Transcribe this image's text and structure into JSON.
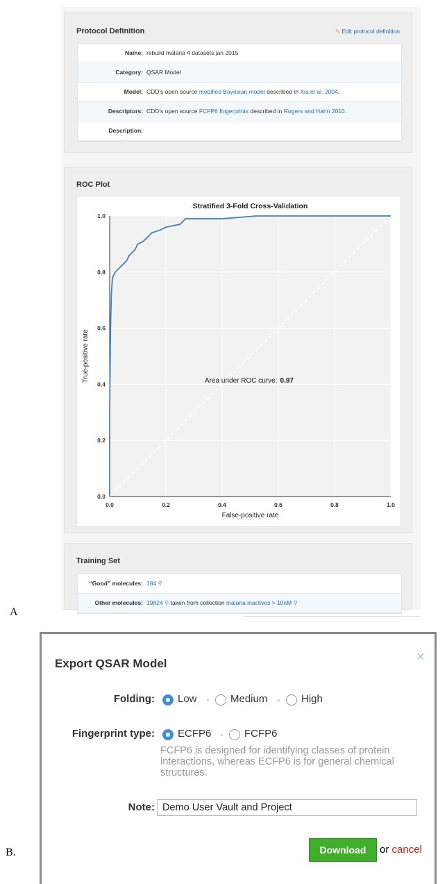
{
  "panel_a": {
    "label": "A",
    "protocol": {
      "title": "Protocol Definition",
      "edit_link": "Edit protocol definition",
      "rows": [
        {
          "label": "Name:",
          "value": [
            "rebuild malaria 4 datasets jan 2015"
          ]
        },
        {
          "label": "Category:",
          "value": [
            "QSAR Model"
          ]
        },
        {
          "label": "Model:",
          "value": [
            "CDD's open source",
            "modified Bayesian model",
            "described in",
            "Xia et al. 2004",
            "."
          ]
        },
        {
          "label": "Descriptors:",
          "value": [
            "CDD's open source",
            "FCFP6 fingerprints",
            "described in",
            "Rogers and Hahn 2010",
            "."
          ]
        },
        {
          "label": "Description:"
        }
      ]
    },
    "roc": {
      "title": "ROC Plot"
    },
    "training_set": {
      "title": "Training Set",
      "rows": [
        {
          "label": "“Good” molecules:",
          "count": 184
        },
        {
          "label": "Other molecules:",
          "count": 19824,
          "source": "taken from collection",
          "collection": "malaria inactives > 10nM"
        }
      ]
    }
  },
  "chart_data": {
    "type": "line",
    "title": "Stratified 3-Fold Cross-Validation",
    "x_label": "False-positive rate",
    "y_label": "True-positive rate",
    "annotation": "Area under ROC curve:",
    "auc": 0.97,
    "x": [
      0,
      0,
      0.003,
      0.006,
      0.01,
      0.02,
      0.03,
      0.04,
      0.05,
      0.06,
      0.07,
      0.08,
      0.09,
      0.1,
      0.12,
      0.13,
      0.15,
      0.18,
      0.2,
      0.25,
      0.27,
      0.3,
      0.4,
      0.52,
      1.0
    ],
    "series": [
      {
        "color": "#4a7fb5",
        "values": [
          0,
          0.3,
          0.6,
          0.72,
          0.78,
          0.8,
          0.81,
          0.82,
          0.83,
          0.84,
          0.86,
          0.87,
          0.88,
          0.9,
          0.91,
          0.92,
          0.94,
          0.95,
          0.96,
          0.97,
          0.99,
          0.99,
          0.99,
          1.0,
          1.0
        ]
      }
    ],
    "xlim": [
      0,
      1
    ],
    "ylim": [
      0,
      1
    ],
    "xticks": [
      {
        "value": 0,
        "label": "0.0"
      },
      0.2,
      0.4,
      0.6,
      0.8,
      {
        "value": 1,
        "label": "1.0"
      }
    ],
    "yticks": [
      {
        "value": 0,
        "label": "0.0"
      },
      0.2,
      0.4,
      0.6,
      0.8,
      {
        "value": 1,
        "label": "1.0"
      }
    ],
    "grid": true
  },
  "panel_b": {
    "label": "B.",
    "dialog": {
      "title": "Export QSAR Model",
      "close": "×",
      "folding": {
        "label": "Folding:",
        "options": [
          "Low",
          "Medium",
          "High"
        ],
        "selected": 0
      },
      "fingerprint": {
        "label": "Fingerprint type:",
        "options": [
          "ECFP6",
          "FCFP6"
        ],
        "selected": 0,
        "help": "FCFP6 is designed for identifying classes of protein interactions, whereas ECFP6 is for general chemical structures."
      },
      "note": {
        "label": "Note:",
        "value": "Demo User Vault and Project"
      },
      "download": "Download",
      "or": "or",
      "cancel": "cancel"
    }
  }
}
